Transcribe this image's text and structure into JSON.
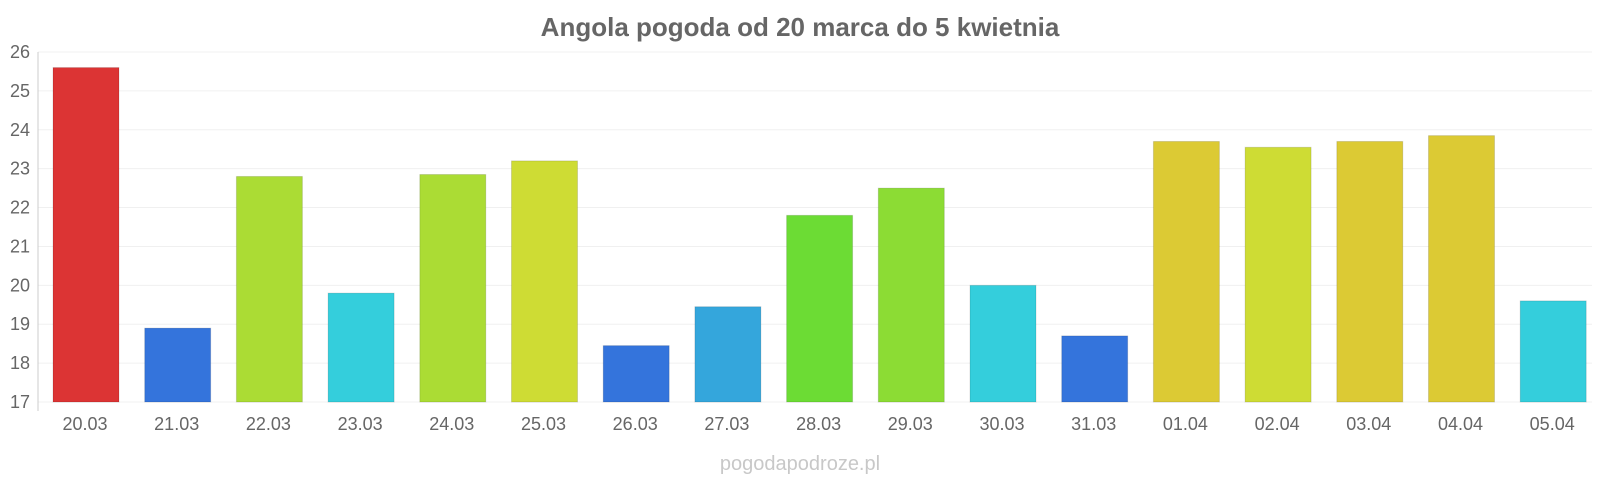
{
  "chart_data": {
    "type": "bar",
    "title": "Angola pogoda od 20 marca do 5 kwietnia",
    "categories": [
      "20.03",
      "21.03",
      "22.03",
      "23.03",
      "24.03",
      "25.03",
      "26.03",
      "27.03",
      "28.03",
      "29.03",
      "30.03",
      "31.03",
      "01.04",
      "02.04",
      "03.04",
      "04.04",
      "05.04"
    ],
    "values": [
      25.6,
      18.9,
      22.8,
      19.8,
      22.85,
      23.2,
      18.45,
      19.45,
      21.8,
      22.5,
      20.0,
      18.7,
      23.7,
      23.55,
      23.7,
      23.85,
      19.6
    ],
    "colors": [
      "#dc3434",
      "#3474dc",
      "#abdc34",
      "#34cedc",
      "#abdc34",
      "#cedc34",
      "#3474dc",
      "#34a6dc",
      "#6cdc34",
      "#8cdc34",
      "#34cedc",
      "#3474dc",
      "#dcca34",
      "#cedc34",
      "#dcca34",
      "#dcca34",
      "#34cedc"
    ],
    "xlabel": "",
    "ylabel": "",
    "ylim": [
      17,
      26
    ],
    "yticks": [
      "17",
      "18",
      "19",
      "20",
      "21",
      "22",
      "23",
      "24",
      "25",
      "26"
    ],
    "grid": true,
    "legend": "none"
  },
  "watermark": "pogodapodroze.pl"
}
